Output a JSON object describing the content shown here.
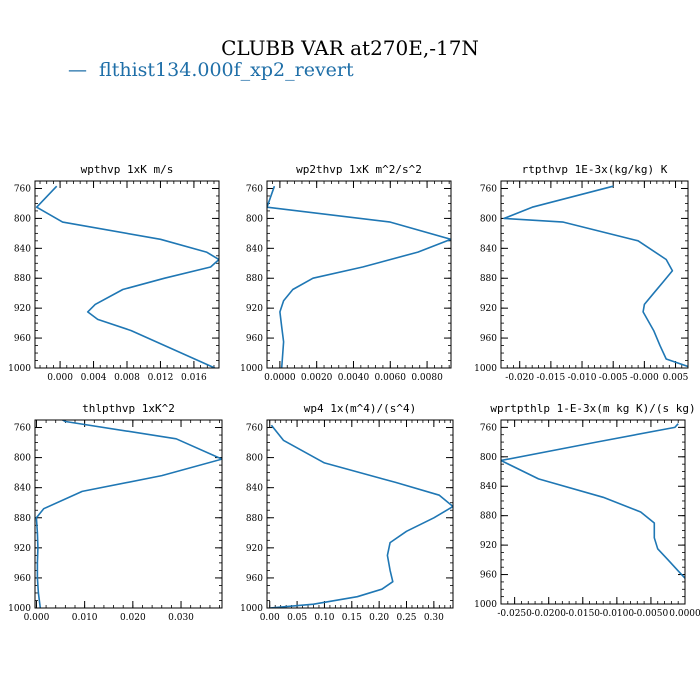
{
  "figure": {
    "title": "CLUBB VAR at270E,-17N",
    "legend": [
      {
        "marker": "—",
        "label": "flthist134.000f_xp2_revert",
        "color": "#1f77b4"
      }
    ]
  },
  "chart_data": [
    {
      "type": "line",
      "title": "wpthvp  1xK m/s",
      "xlim": [
        -0.003,
        0.019
      ],
      "ylim": [
        1000,
        750
      ],
      "x_ticks": [
        0.0,
        0.004,
        0.008,
        0.012,
        0.016
      ],
      "x_tick_labels": [
        "0.000",
        "0.004",
        "0.008",
        "0.012",
        "0.016"
      ],
      "y_ticks": [
        760,
        800,
        840,
        880,
        920,
        960,
        1000
      ],
      "series": [
        {
          "color": "#1f77b4",
          "x": [
            -0.0004,
            -0.0028,
            0.0003,
            0.012,
            0.0175,
            0.019,
            0.018,
            0.0125,
            0.0075,
            0.0042,
            0.0033,
            0.0045,
            0.0085,
            0.0185
          ],
          "y": [
            757,
            785,
            805,
            828,
            845,
            855,
            865,
            880,
            895,
            915,
            925,
            935,
            950,
            1000
          ]
        }
      ]
    },
    {
      "type": "line",
      "title": "wp2thvp  1xK m^2/s^2",
      "xlim": [
        -0.0007,
        0.0093
      ],
      "ylim": [
        1000,
        750
      ],
      "x_ticks": [
        0.0,
        0.002,
        0.004,
        0.006,
        0.008
      ],
      "x_tick_labels": [
        "0.0000",
        "0.0020",
        "0.0040",
        "0.0060",
        "0.0080"
      ],
      "y_ticks": [
        760,
        800,
        840,
        880,
        920,
        960,
        1000
      ],
      "series": [
        {
          "color": "#1f77b4",
          "x": [
            -0.0003,
            -0.0007,
            0.006,
            0.0093,
            0.0075,
            0.0045,
            0.0018,
            0.0007,
            0.0002,
            0.0,
            0.0001,
            0.0002,
            0.0001
          ],
          "y": [
            757,
            785,
            805,
            828,
            845,
            865,
            880,
            895,
            910,
            925,
            945,
            965,
            1000
          ]
        }
      ]
    },
    {
      "type": "line",
      "title": "rtpthvp  1E-3x(kg/kg) K",
      "xlim": [
        -0.023,
        0.007
      ],
      "ylim": [
        1000,
        750
      ],
      "x_ticks": [
        -0.02,
        -0.015,
        -0.01,
        -0.005,
        0.0,
        0.005
      ],
      "x_tick_labels": [
        "-0.020",
        "-0.015",
        "-0.010",
        "-0.005",
        "-0.000",
        "0.005"
      ],
      "y_ticks": [
        760,
        800,
        840,
        880,
        920,
        960,
        1000
      ],
      "series": [
        {
          "color": "#1f77b4",
          "x": [
            -0.005,
            -0.018,
            -0.0225,
            -0.013,
            -0.001,
            0.0035,
            0.0045,
            0.003,
            0.0015,
            0.0,
            -0.0002,
            0.0015,
            0.0025,
            0.0035,
            0.007
          ],
          "y": [
            757,
            785,
            800,
            805,
            830,
            855,
            870,
            885,
            900,
            915,
            925,
            950,
            970,
            988,
            998
          ]
        }
      ]
    },
    {
      "type": "line",
      "title": "thlpthvp  1xK^2",
      "xlim": [
        -0.0003,
        0.0385
      ],
      "ylim": [
        1000,
        750
      ],
      "x_ticks": [
        0.0,
        0.01,
        0.02,
        0.03
      ],
      "x_tick_labels": [
        "0.000",
        "0.010",
        "0.020",
        "0.030"
      ],
      "y_ticks": [
        760,
        800,
        840,
        880,
        920,
        960,
        1000
      ],
      "series": [
        {
          "color": "#1f77b4",
          "x": [
            0.004,
            0.006,
            0.029,
            0.0385,
            0.026,
            0.0095,
            0.0015,
            0.0,
            0.0002,
            0.0003,
            0.0002,
            0.0002,
            0.0004,
            0.0008
          ],
          "y": [
            745,
            752,
            775,
            802,
            824,
            845,
            868,
            880,
            900,
            920,
            940,
            960,
            980,
            1000
          ]
        }
      ]
    },
    {
      "type": "line",
      "title": "wp4  1x(m^4)/(s^4)",
      "xlim": [
        -0.005,
        0.335
      ],
      "ylim": [
        1000,
        750
      ],
      "x_ticks": [
        0.0,
        0.05,
        0.1,
        0.15,
        0.2,
        0.25,
        0.3
      ],
      "x_tick_labels": [
        "0.00",
        "0.05",
        "0.10",
        "0.15",
        "0.20",
        "0.25",
        "0.30"
      ],
      "y_ticks": [
        760,
        800,
        840,
        880,
        920,
        960,
        1000
      ],
      "series": [
        {
          "color": "#1f77b4",
          "x": [
            0.003,
            0.025,
            0.1,
            0.23,
            0.31,
            0.335,
            0.3,
            0.25,
            0.22,
            0.215,
            0.22,
            0.225,
            0.205,
            0.16,
            0.08,
            0.0
          ],
          "y": [
            757,
            777,
            807,
            833,
            850,
            865,
            880,
            898,
            913,
            930,
            950,
            965,
            975,
            985,
            995,
            1000
          ]
        }
      ]
    },
    {
      "type": "line",
      "title": "wprtpthlp  1-E-3x(m kg K)/(s kg)",
      "xlim": [
        -0.027,
        0.0
      ],
      "ylim": [
        1000,
        750
      ],
      "x_ticks": [
        -0.025,
        -0.02,
        -0.015,
        -0.01,
        -0.005,
        0.0
      ],
      "x_tick_labels": [
        "-0.0250",
        "-0.0200",
        "-0.0150",
        "-0.0100",
        "-0.0050",
        "0.0000"
      ],
      "y_ticks": [
        760,
        800,
        840,
        880,
        920,
        960,
        1000
      ],
      "series": [
        {
          "color": "#1f77b4",
          "x": [
            -0.001,
            -0.0015,
            -0.013,
            -0.027,
            -0.0215,
            -0.012,
            -0.0065,
            -0.0045,
            -0.0045,
            -0.004,
            -0.0025,
            -0.001,
            0.0
          ],
          "y": [
            755,
            760,
            780,
            805,
            830,
            855,
            875,
            890,
            910,
            925,
            940,
            955,
            965
          ]
        }
      ]
    }
  ]
}
